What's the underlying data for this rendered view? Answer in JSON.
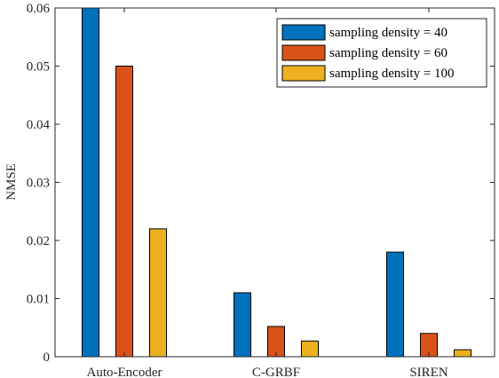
{
  "chart_data": {
    "type": "bar",
    "categories": [
      "Auto-Encoder",
      "C-GRBF",
      "SIREN"
    ],
    "series": [
      {
        "name": "sampling density = 40",
        "color": "#0072BD",
        "values": [
          0.06,
          0.011,
          0.018
        ]
      },
      {
        "name": "sampling density = 60",
        "color": "#D95319",
        "values": [
          0.05,
          0.0052,
          0.004
        ]
      },
      {
        "name": "sampling density = 100",
        "color": "#EDB120",
        "values": [
          0.022,
          0.0027,
          0.0012
        ]
      }
    ],
    "ylabel": "NMSE",
    "xlabel": "",
    "ylim": [
      0,
      0.06
    ],
    "yticks": [
      0,
      0.01,
      0.02,
      0.03,
      0.04,
      0.05,
      0.06
    ],
    "ytick_labels": [
      "0",
      "0.01",
      "0.02",
      "0.03",
      "0.04",
      "0.05",
      "0.06"
    ],
    "grid": false,
    "legend_position": "top-right"
  }
}
